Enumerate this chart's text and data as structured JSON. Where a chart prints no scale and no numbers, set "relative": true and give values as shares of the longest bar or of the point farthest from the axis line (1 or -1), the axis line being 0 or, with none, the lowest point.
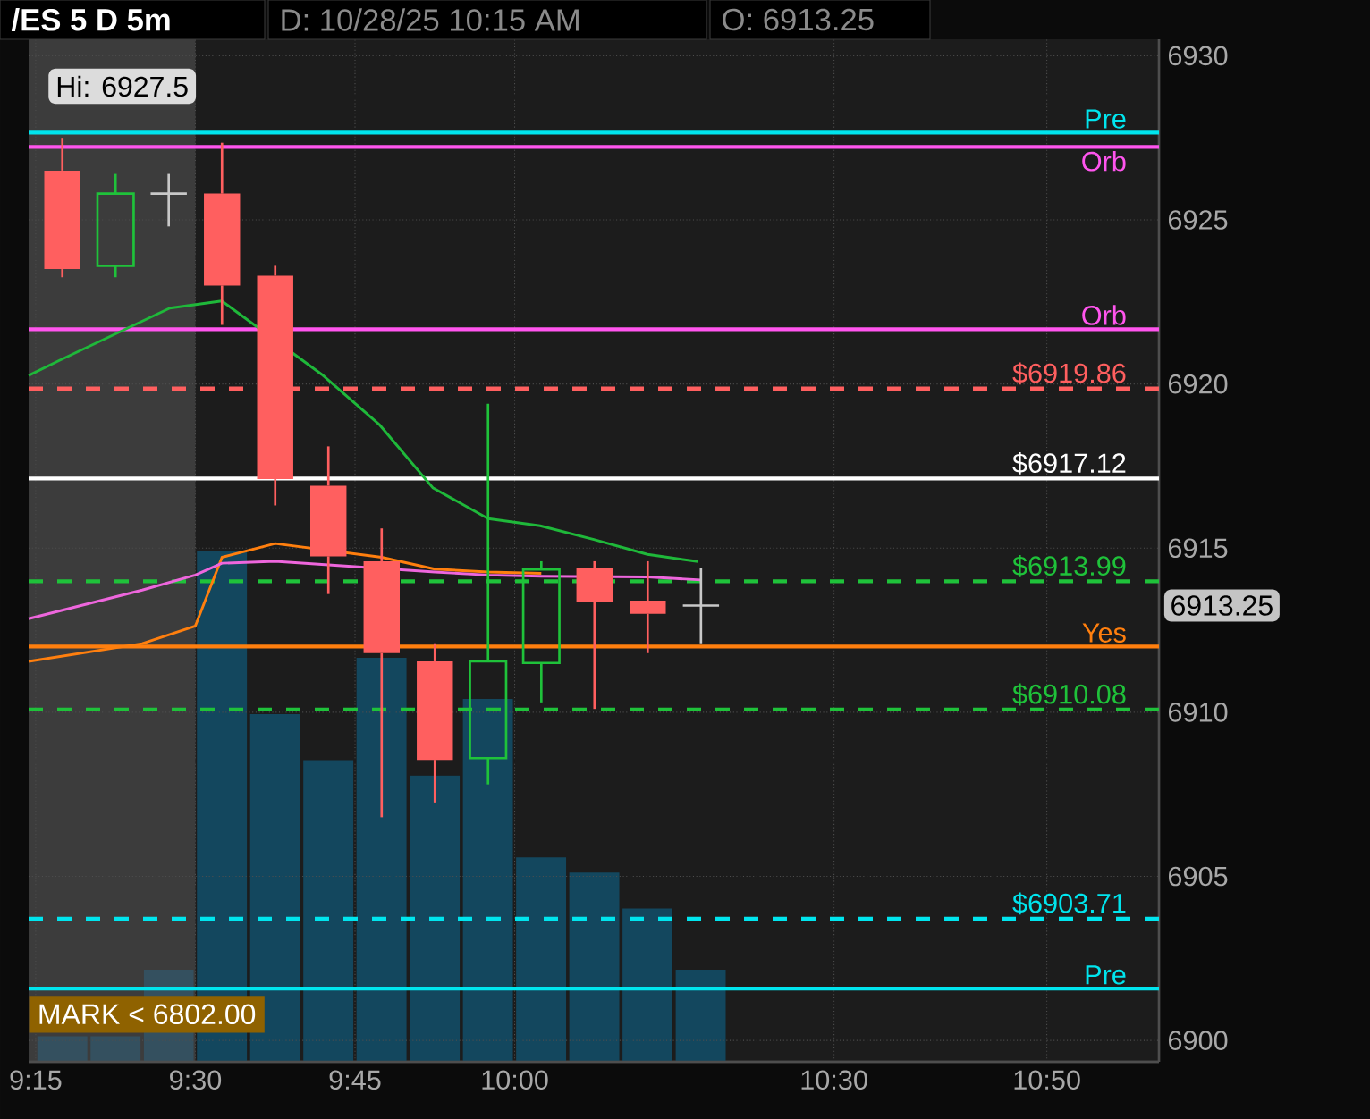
{
  "chart_data": [
    {
      "type": "candlestick",
      "title": "/ES 5 D 5m",
      "subtitle": "D: 10/28/25 10:15 AM",
      "annotations": [
        "O: 6913.25",
        {
          "text": "Hi: 6927.5",
          "x": 9.2917,
          "y": 6927.5
        },
        "6913.25",
        "MARK < 6802.00"
      ],
      "x": [
        9.2917,
        9.375,
        9.4583,
        9.5417,
        9.625,
        9.7083,
        9.7917,
        9.875,
        9.9583,
        10.0417,
        10.125,
        10.2083,
        10.2917
      ],
      "ohlc": [
        [
          6926.5,
          6927.5,
          6923.25,
          6923.5
        ],
        [
          6923.6,
          6926.4,
          6923.25,
          6925.8
        ],
        [
          6925.8,
          6926.4,
          6924.8,
          6925.8
        ],
        [
          6925.8,
          6927.35,
          6921.8,
          6923.0
        ],
        [
          6923.3,
          6923.6,
          6916.3,
          6917.1
        ],
        [
          6916.9,
          6918.1,
          6913.6,
          6914.75
        ],
        [
          6914.6,
          6915.6,
          6906.8,
          6911.8
        ],
        [
          6911.55,
          6912.1,
          6907.25,
          6908.55
        ],
        [
          6908.6,
          6919.4,
          6907.8,
          6911.55
        ],
        [
          6911.5,
          6914.6,
          6910.3,
          6914.35
        ],
        [
          6914.4,
          6914.6,
          6910.1,
          6913.35
        ],
        [
          6913.4,
          6914.6,
          6911.8,
          6913.0
        ],
        [
          6913.25,
          6914.4,
          6912.1,
          6913.25
        ]
      ],
      "colors": [
        "#ff5f5f",
        "#1fc23a",
        "#c8c8c8",
        "#ff5f5f",
        "#ff5f5f",
        "#ff5f5f",
        "#ff5f5f",
        "#ff5f5f",
        "#1fc23a",
        "#1fc23a",
        "#ff5f5f",
        "#ff5f5f",
        "#c8c8c8"
      ],
      "series": [
        {
          "type": "line",
          "color": "#1fb83a",
          "x": [
            9.2389,
            9.2864,
            9.46,
            9.5413,
            9.698,
            9.7878,
            9.8717,
            9.9584,
            10.04,
            10.124,
            10.208,
            10.287
          ],
          "values": [
            6920.26,
            6920.71,
            6922.31,
            6922.53,
            6920.29,
            6918.77,
            6916.84,
            6915.9,
            6915.68,
            6915.26,
            6914.81,
            6914.59
          ]
        },
        {
          "type": "line",
          "color": "#ff7f0e",
          "x": [
            9.2389,
            9.4167,
            9.5,
            9.5417,
            9.625,
            9.7917,
            9.875,
            9.9583,
            10.0417
          ],
          "values": [
            6911.55,
            6912.09,
            6912.63,
            6914.72,
            6915.14,
            6914.72,
            6914.36,
            6914.27,
            6914.23
          ]
        },
        {
          "type": "line",
          "color": "#ee66dd",
          "x": [
            9.2389,
            9.4167,
            9.5,
            9.5417,
            9.625,
            9.875,
            9.9583,
            10.0417,
            10.2083,
            10.2917
          ],
          "values": [
            6912.85,
            6913.72,
            6914.18,
            6914.54,
            6914.6,
            6914.27,
            6914.18,
            6914.14,
            6914.12,
            6914.03
          ]
        }
      ],
      "ref_lines": [
        {
          "axis": "y",
          "value": 6927.66,
          "label": "Pre",
          "color": "#00e5ee",
          "line_style": "solid"
        },
        {
          "axis": "y",
          "value": 6927.22,
          "label": "Orb",
          "color": "#ff55ee",
          "line_style": "solid"
        },
        {
          "axis": "y",
          "value": 6921.67,
          "label": "Orb",
          "color": "#ff55ee",
          "line_style": "solid"
        },
        {
          "axis": "y",
          "value": 6919.86,
          "label": "$6919.86",
          "color": "#ff5f5f",
          "line_style": "dashed"
        },
        {
          "axis": "y",
          "value": 6917.12,
          "label": "$6917.12",
          "color": "#ffffff",
          "line_style": "solid"
        },
        {
          "axis": "y",
          "value": 6913.99,
          "label": "$6913.99",
          "color": "#1fc23a",
          "line_style": "dashed"
        },
        {
          "axis": "y",
          "value": 6912.0,
          "label": "Yes",
          "color": "#ff7f0e",
          "line_style": "solid"
        },
        {
          "axis": "y",
          "value": 6910.08,
          "label": "$6910.08",
          "color": "#1fc23a",
          "line_style": "dashed"
        },
        {
          "axis": "y",
          "value": 6903.71,
          "label": "$6903.71",
          "color": "#00e5ee",
          "line_style": "dashed"
        },
        {
          "axis": "y",
          "value": 6901.58,
          "label": "Pre",
          "color": "#00e5ee",
          "line_style": "solid"
        }
      ],
      "bands": [
        {
          "axis": "x",
          "from": 9.2389,
          "to": 9.5,
          "color": "#3c3c3c"
        }
      ],
      "xlim": [
        9.2389,
        11.0089
      ],
      "ylim": [
        6899.35,
        6930.5
      ],
      "xticks": [
        {
          "value": 9.25,
          "label": "9:15"
        },
        {
          "value": 9.5,
          "label": "9:30"
        },
        {
          "value": 9.75,
          "label": "9:45"
        },
        {
          "value": 10,
          "label": "10:00"
        },
        {
          "value": 10.5,
          "label": "10:30"
        },
        {
          "value": 10.8333,
          "label": "10:50"
        }
      ],
      "yticks": [
        6900,
        6905,
        6910,
        6915,
        6920,
        6925,
        6930
      ],
      "grid": true
    },
    {
      "type": "bar",
      "relative": true,
      "categories": [
        null,
        null,
        null,
        null,
        null,
        null,
        null,
        null,
        null,
        null,
        null,
        null,
        null
      ],
      "values": [
        0.05,
        0.05,
        0.18,
        1,
        0.68,
        0.59,
        0.79,
        0.56,
        0.71,
        0.4,
        0.37,
        0.3,
        0.18
      ],
      "colors": [
        "#34505f",
        "#34505f",
        "#34505f",
        "#13475e",
        "#13475e",
        "#13475e",
        "#13475e",
        "#13475e",
        "#13475e",
        "#13475e",
        "#13475e",
        "#13475e",
        "#13475e"
      ]
    }
  ]
}
